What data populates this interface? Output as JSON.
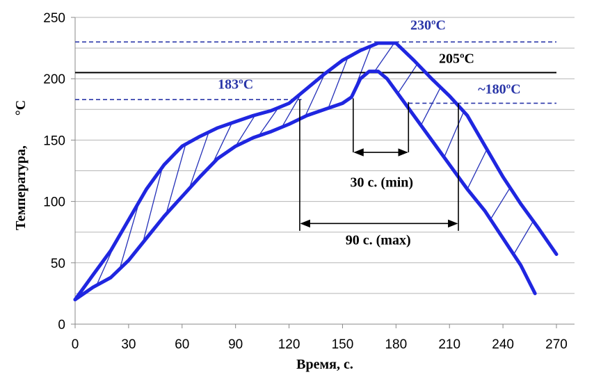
{
  "chart_data": {
    "type": "line",
    "xlabel": "Время, с.",
    "ylabel_main": "Температура,",
    "ylabel_unit": "°C",
    "xlim": [
      0,
      270
    ],
    "ylim": [
      0,
      250
    ],
    "x_ticks": [
      "0",
      "30",
      "60",
      "90",
      "120",
      "150",
      "180",
      "210",
      "240",
      "270"
    ],
    "y_ticks": [
      "0",
      "50",
      "100",
      "150",
      "200",
      "250"
    ],
    "grid": "horizontal",
    "series_color": "#1f26e0",
    "series": [
      {
        "points": [
          [
            0,
            20
          ],
          [
            10,
            30
          ],
          [
            20,
            38
          ],
          [
            30,
            52
          ],
          [
            40,
            70
          ],
          [
            50,
            88
          ],
          [
            60,
            104
          ],
          [
            70,
            120
          ],
          [
            80,
            135
          ],
          [
            90,
            145
          ],
          [
            100,
            152
          ],
          [
            110,
            157
          ],
          [
            120,
            163
          ],
          [
            130,
            170
          ],
          [
            140,
            175
          ],
          [
            150,
            180
          ],
          [
            155,
            185
          ],
          [
            160,
            200
          ],
          [
            165,
            206
          ],
          [
            170,
            206
          ],
          [
            175,
            200
          ],
          [
            180,
            190
          ],
          [
            190,
            170
          ],
          [
            200,
            150
          ],
          [
            210,
            130
          ],
          [
            220,
            110
          ],
          [
            230,
            92
          ],
          [
            240,
            70
          ],
          [
            250,
            48
          ],
          [
            258,
            25
          ]
        ]
      },
      {
        "points": [
          [
            0,
            20
          ],
          [
            10,
            40
          ],
          [
            20,
            60
          ],
          [
            30,
            85
          ],
          [
            40,
            110
          ],
          [
            50,
            130
          ],
          [
            60,
            145
          ],
          [
            70,
            153
          ],
          [
            80,
            160
          ],
          [
            90,
            165
          ],
          [
            100,
            170
          ],
          [
            110,
            174
          ],
          [
            120,
            180
          ],
          [
            130,
            192
          ],
          [
            140,
            204
          ],
          [
            150,
            215
          ],
          [
            160,
            223
          ],
          [
            170,
            229
          ],
          [
            180,
            229
          ],
          [
            190,
            215
          ],
          [
            200,
            200
          ],
          [
            210,
            186
          ],
          [
            220,
            170
          ],
          [
            230,
            145
          ],
          [
            240,
            120
          ],
          [
            250,
            98
          ],
          [
            260,
            78
          ],
          [
            270,
            57
          ]
        ]
      }
    ],
    "reference_lines": [
      {
        "y": 230,
        "style": "dashed",
        "color": "#2a36a8"
      },
      {
        "y": 205,
        "style": "solid",
        "color": "#000000"
      },
      {
        "y": 183,
        "style": "dashed",
        "color": "#2a36a8",
        "x_range": [
          0,
          127
        ]
      },
      {
        "y": 180,
        "style": "dashed",
        "color": "#2a36a8",
        "x_range": [
          187,
          270
        ]
      }
    ],
    "annotations": [
      {
        "text": "230ºC",
        "x": 198,
        "y": 240,
        "color": "#2a36a8"
      },
      {
        "text": "205ºC",
        "x": 214,
        "y": 213,
        "color": "#000000"
      },
      {
        "text": "183ºC",
        "x": 90,
        "y": 192,
        "color": "#2a36a8"
      },
      {
        "text": "~180ºC",
        "x": 238,
        "y": 188,
        "color": "#2a36a8"
      },
      {
        "text": "30 с. (min)",
        "x": 172,
        "y": 112,
        "color": "#000000"
      },
      {
        "text": "90 с. (max)",
        "x": 170,
        "y": 65,
        "color": "#000000"
      }
    ],
    "spans": [
      {
        "x1": 156,
        "x2": 187,
        "y": 140,
        "verticals": [
          [
            156,
            184,
            140
          ],
          [
            187,
            181,
            140
          ]
        ],
        "label": "30 с. (min)"
      },
      {
        "x1": 126,
        "x2": 215,
        "y": 82,
        "verticals": [
          [
            126,
            183,
            76
          ],
          [
            215,
            180,
            76
          ]
        ],
        "label": "90 с. (max)"
      }
    ]
  }
}
